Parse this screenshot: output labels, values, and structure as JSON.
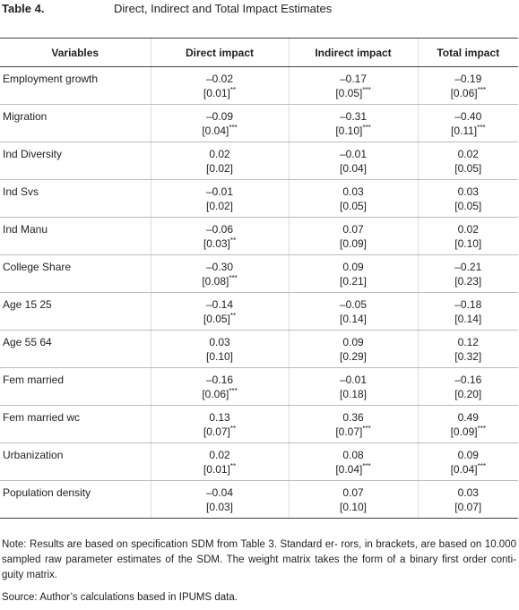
{
  "table_label": "Table 4.",
  "table_title": "Direct, Indirect and Total Impact Estimates",
  "table": {
    "header": [
      "Variables",
      "Direct impact",
      "Indirect impact",
      "Total impact"
    ],
    "rows": [
      {
        "name": "Employment growth",
        "cells": [
          {
            "estimate": "–0.02",
            "se": "[0.01]",
            "stars": "**"
          },
          {
            "estimate": "–0.17",
            "se": "[0.05]",
            "stars": "***"
          },
          {
            "estimate": "–0.19",
            "se": "[0.06]",
            "stars": "***"
          }
        ]
      },
      {
        "name": "Migration",
        "cells": [
          {
            "estimate": "–0.09",
            "se": "[0.04]",
            "stars": "***"
          },
          {
            "estimate": "–0.31",
            "se": "[0.10]",
            "stars": "***"
          },
          {
            "estimate": "–0.40",
            "se": "[0.11]",
            "stars": "***"
          }
        ]
      },
      {
        "name": "Ind Diversity",
        "cells": [
          {
            "estimate": "0.02",
            "se": "[0.02]"
          },
          {
            "estimate": "–0.01",
            "se": "[0.04]"
          },
          {
            "estimate": "0.02",
            "se": "[0.05]"
          }
        ]
      },
      {
        "name": "Ind Svs",
        "cells": [
          {
            "estimate": "–0.01",
            "se": "[0.02]"
          },
          {
            "estimate": "0.03",
            "se": "[0.05]"
          },
          {
            "estimate": "0.03",
            "se": "[0.05]"
          }
        ]
      },
      {
        "name": "Ind Manu",
        "cells": [
          {
            "estimate": "–0.06",
            "se": "[0.03]",
            "stars": "**"
          },
          {
            "estimate": "0.07",
            "se": "[0.09]"
          },
          {
            "estimate": "0.02",
            "se": "[0.10]"
          }
        ]
      },
      {
        "name": "College Share",
        "cells": [
          {
            "estimate": "–0.30",
            "se": "[0.08]",
            "stars": "***"
          },
          {
            "estimate": "0.09",
            "se": "[0.21]"
          },
          {
            "estimate": "–0.21",
            "se": "[0.23]"
          }
        ]
      },
      {
        "name": "Age 15 25",
        "cells": [
          {
            "estimate": "–0.14",
            "se": "[0.05]",
            "stars": "**"
          },
          {
            "estimate": "–0.05",
            "se": "[0.14]"
          },
          {
            "estimate": "–0.18",
            "se": "[0.14]"
          }
        ]
      },
      {
        "name": "Age 55 64",
        "cells": [
          {
            "estimate": "0.03",
            "se": "[0.10]"
          },
          {
            "estimate": "0.09",
            "se": "[0.29]"
          },
          {
            "estimate": "0.12",
            "se": "[0.32]"
          }
        ]
      },
      {
        "name": "Fem married",
        "cells": [
          {
            "estimate": "–0.16",
            "se": "[0.06]",
            "stars": "***"
          },
          {
            "estimate": "–0.01",
            "se": "[0.18]"
          },
          {
            "estimate": "–0.16",
            "se": "[0.20]"
          }
        ]
      },
      {
        "name": "Fem married wc",
        "cells": [
          {
            "estimate": "0.13",
            "se": "[0.07]",
            "stars": "**"
          },
          {
            "estimate": "0.36",
            "se": "[0.07]",
            "stars": "***"
          },
          {
            "estimate": "0.49",
            "se": "[0.09]",
            "stars": "***"
          }
        ]
      },
      {
        "name": "Urbanization",
        "cells": [
          {
            "estimate": "0.02",
            "se": "[0.01]",
            "stars": "**"
          },
          {
            "estimate": "0.08",
            "se": "[0.04]",
            "stars": "***"
          },
          {
            "estimate": "0.09",
            "se": "[0.04]",
            "stars": "***"
          }
        ]
      },
      {
        "name": "Population density",
        "cells": [
          {
            "estimate": "–0.04",
            "se": "[0.03]"
          },
          {
            "estimate": "0.07",
            "se": "[0.10]"
          },
          {
            "estimate": "0.03",
            "se": "[0.07]"
          }
        ]
      }
    ]
  },
  "note": "Note: Results are based on specification SDM from Table 3. Standard er- rors, in brackets, are based on 10.000 sampled raw parameter estimates of the SDM. The weight matrix takes the form of a binary first order conti- guity matrix.",
  "source": "Source: Author’s calculations based in IPUMS data."
}
